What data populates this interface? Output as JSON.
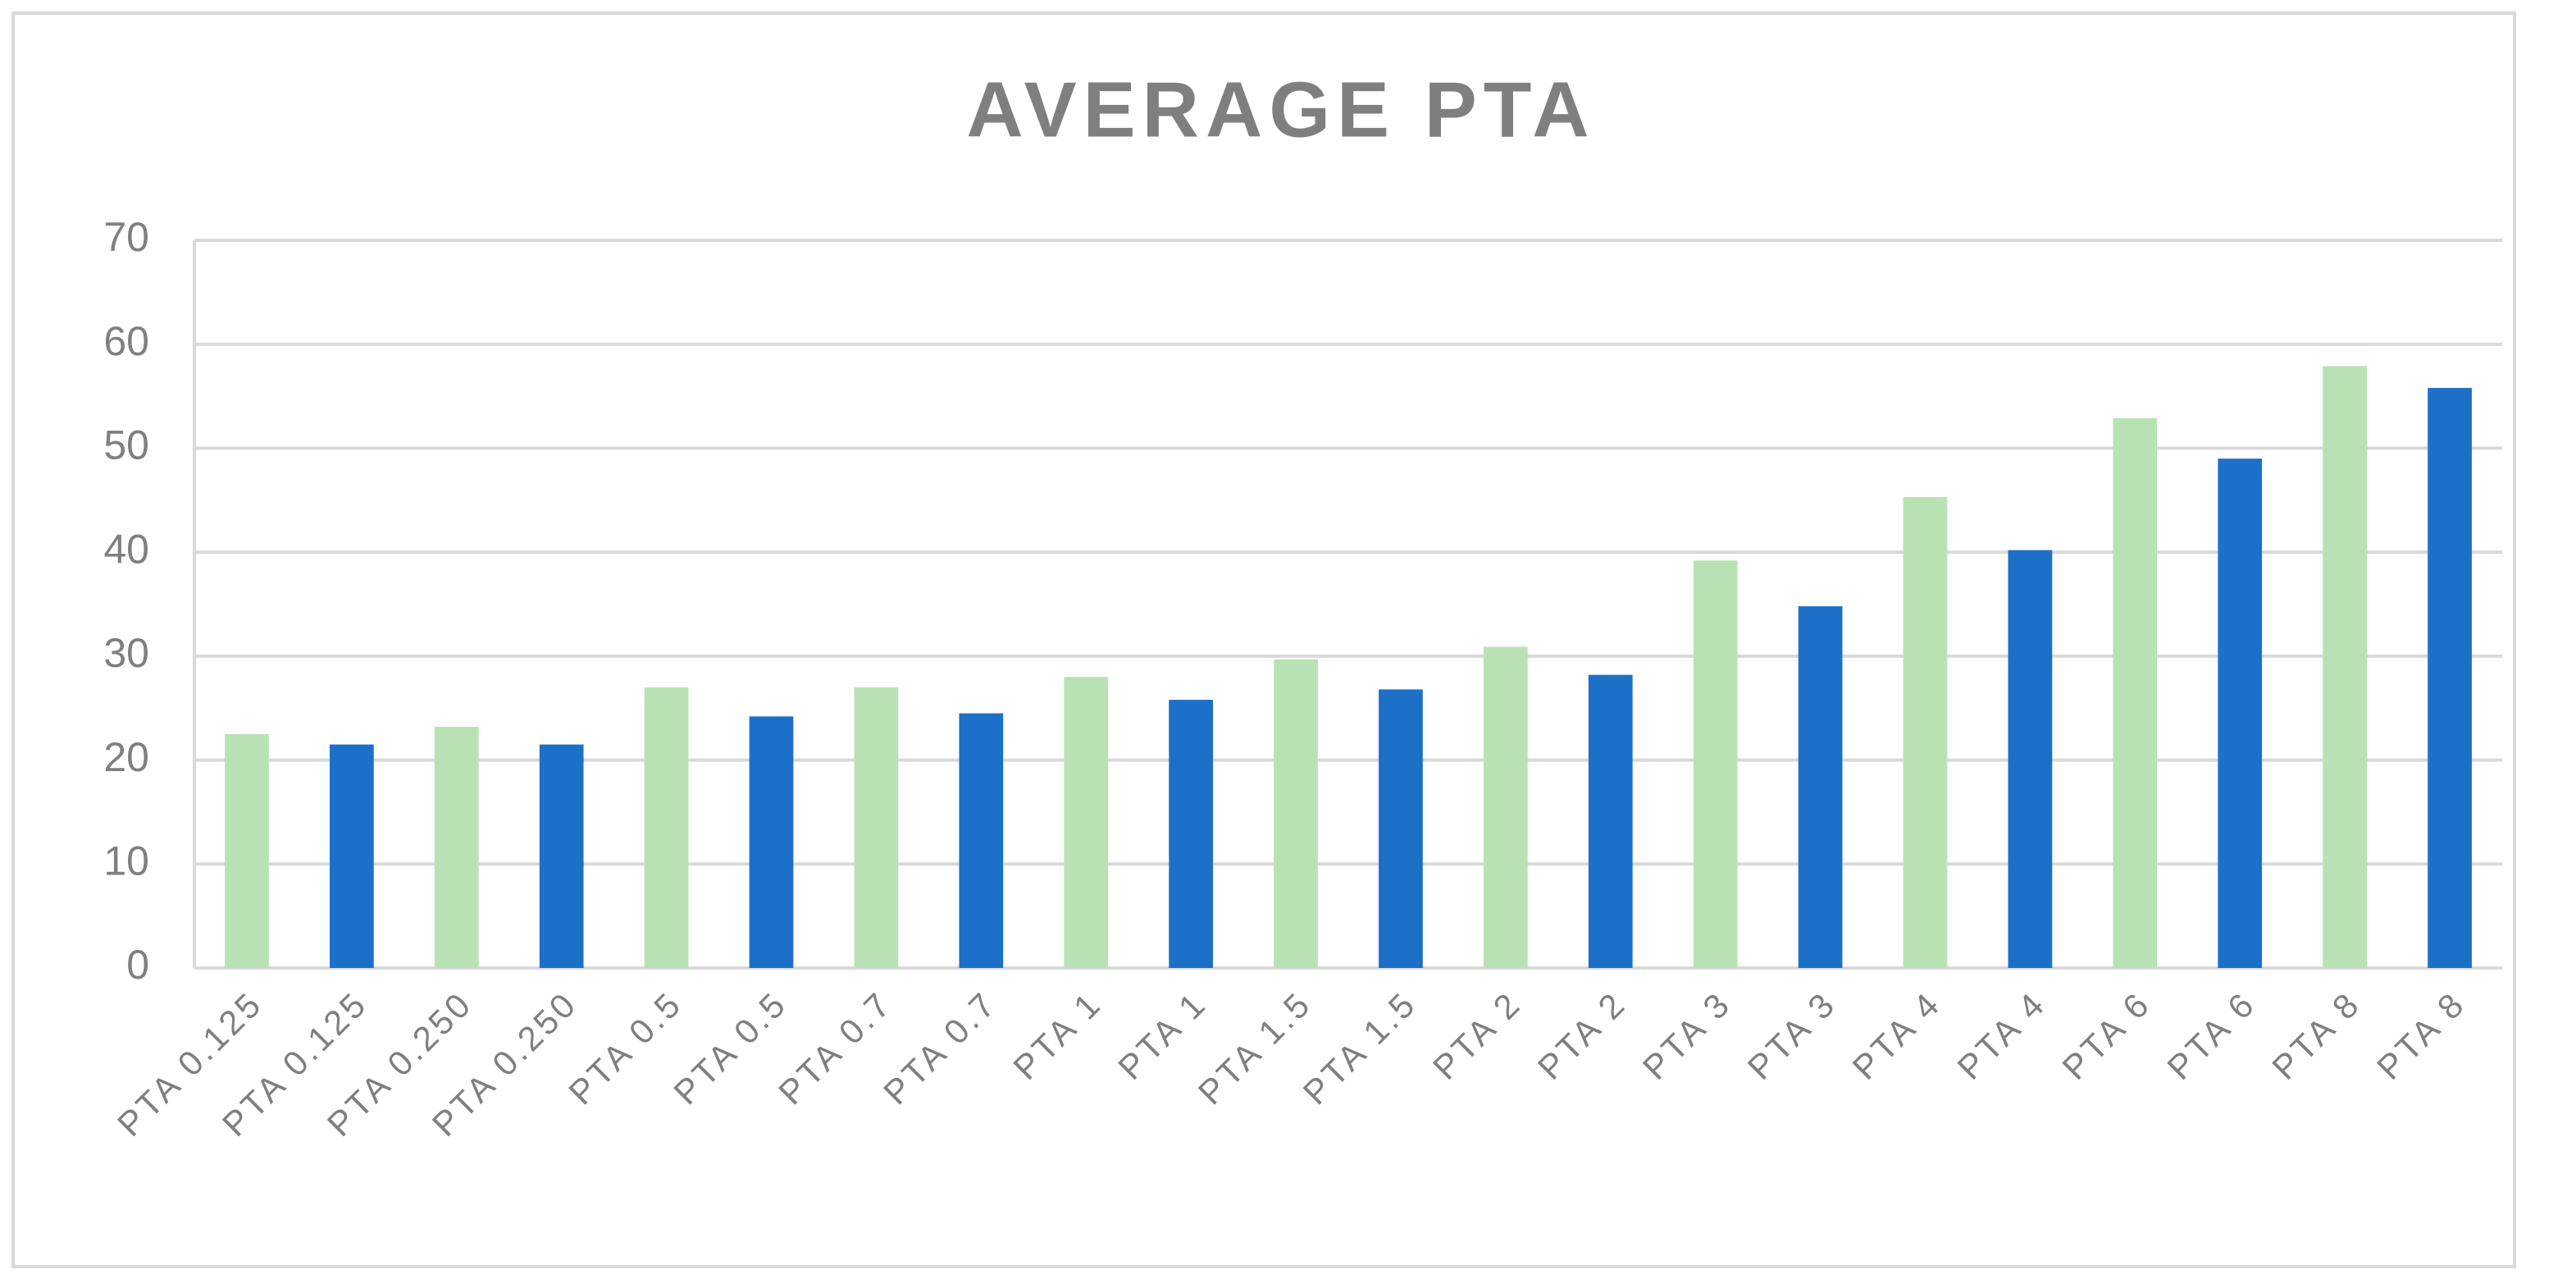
{
  "chart_data": {
    "type": "bar",
    "title": "AVERAGE PTA",
    "categories": [
      "PTA 0.125",
      "PTA 0.125",
      "PTA 0.250",
      "PTA 0.250",
      "PTA 0.5",
      "PTA 0.5",
      "PTA 0.7",
      "PTA 0.7",
      "PTA 1",
      "PTA 1",
      "PTA 1.5",
      "PTA 1.5",
      "PTA 2",
      "PTA 2",
      "PTA 3",
      "PTA 3",
      "PTA 4",
      "PTA 4",
      "PTA 6",
      "PTA 6",
      "PTA 8",
      "PTA 8"
    ],
    "values": [
      22.5,
      21.5,
      23.2,
      21.5,
      27,
      24.2,
      27,
      24.5,
      28,
      25.8,
      29.7,
      26.8,
      30.9,
      28.2,
      39.2,
      34.8,
      45.3,
      40.2,
      52.9,
      49,
      57.9,
      55.8
    ],
    "colors": [
      "#b9e2b4",
      "#1c70c8",
      "#b9e2b4",
      "#1c70c8",
      "#b9e2b4",
      "#1c70c8",
      "#b9e2b4",
      "#1c70c8",
      "#b9e2b4",
      "#1c70c8",
      "#b9e2b4",
      "#1c70c8",
      "#b9e2b4",
      "#1c70c8",
      "#b9e2b4",
      "#1c70c8",
      "#b9e2b4",
      "#1c70c8",
      "#b9e2b4",
      "#1c70c8",
      "#b9e2b4",
      "#1c70c8"
    ],
    "ylim": [
      0,
      70
    ],
    "yticks": [
      0,
      10,
      20,
      30,
      40,
      50,
      60,
      70
    ],
    "grid": true
  }
}
